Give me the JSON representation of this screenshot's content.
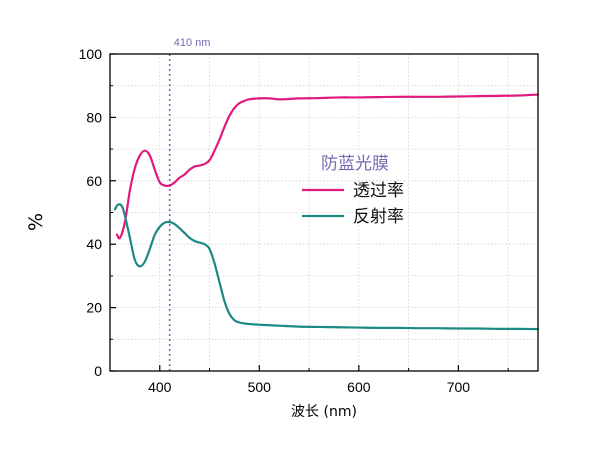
{
  "chart_data": {
    "type": "line",
    "xlabel": "波长 (nm)",
    "ylabel": "%",
    "xlim": [
      350,
      780
    ],
    "ylim": [
      0,
      100
    ],
    "x_ticks": [
      400,
      500,
      600,
      700
    ],
    "x_tick_labels": [
      "400",
      "500",
      "600",
      "700"
    ],
    "y_ticks": [
      0,
      20,
      40,
      60,
      80,
      100
    ],
    "y_tick_labels": [
      "0",
      "20",
      "40",
      "60",
      "80",
      "100"
    ],
    "grid": true,
    "legend": {
      "title": "防蓝光膜",
      "placement": "center-right",
      "title_color": "#7b68b5"
    },
    "annotation": {
      "x": 410,
      "label": "410 nm",
      "color": "#7b68b5"
    },
    "series": [
      {
        "name": "透过率",
        "color": "#e0197d",
        "x": [
          357,
          360,
          365,
          370,
          375,
          380,
          385,
          390,
          395,
          400,
          405,
          410,
          415,
          420,
          425,
          430,
          435,
          440,
          445,
          450,
          455,
          460,
          465,
          470,
          475,
          480,
          485,
          490,
          500,
          510,
          520,
          530,
          540,
          560,
          580,
          600,
          620,
          640,
          660,
          680,
          700,
          720,
          740,
          760,
          780
        ],
        "y": [
          43,
          42,
          47,
          57,
          64,
          68,
          69.5,
          68,
          63.5,
          59.5,
          58.5,
          58.5,
          59.5,
          61,
          62,
          63.5,
          64.5,
          64.8,
          65.3,
          66.5,
          69.5,
          73,
          77,
          80.5,
          83,
          84.5,
          85.2,
          85.7,
          86,
          86,
          85.7,
          85.8,
          86,
          86.1,
          86.3,
          86.3,
          86.4,
          86.5,
          86.5,
          86.5,
          86.6,
          86.7,
          86.8,
          86.9,
          87.2
        ]
      },
      {
        "name": "反射率",
        "color": "#1a8a82",
        "x": [
          355,
          358,
          362,
          365,
          370,
          375,
          380,
          385,
          390,
          395,
          400,
          405,
          410,
          415,
          420,
          425,
          430,
          435,
          440,
          445,
          450,
          455,
          460,
          465,
          470,
          475,
          480,
          485,
          490,
          500,
          520,
          540,
          560,
          580,
          600,
          620,
          640,
          660,
          680,
          700,
          720,
          740,
          760,
          780
        ],
        "y": [
          51,
          52.5,
          52,
          49,
          42,
          35,
          33,
          34.5,
          38.5,
          43,
          45.5,
          46.8,
          47,
          46.3,
          45,
          43.5,
          42,
          41,
          40.5,
          40,
          38.5,
          34,
          28,
          22,
          18,
          16,
          15.3,
          15,
          14.8,
          14.6,
          14.3,
          14,
          13.9,
          13.8,
          13.7,
          13.6,
          13.6,
          13.5,
          13.5,
          13.4,
          13.4,
          13.3,
          13.3,
          13.2
        ]
      }
    ]
  }
}
